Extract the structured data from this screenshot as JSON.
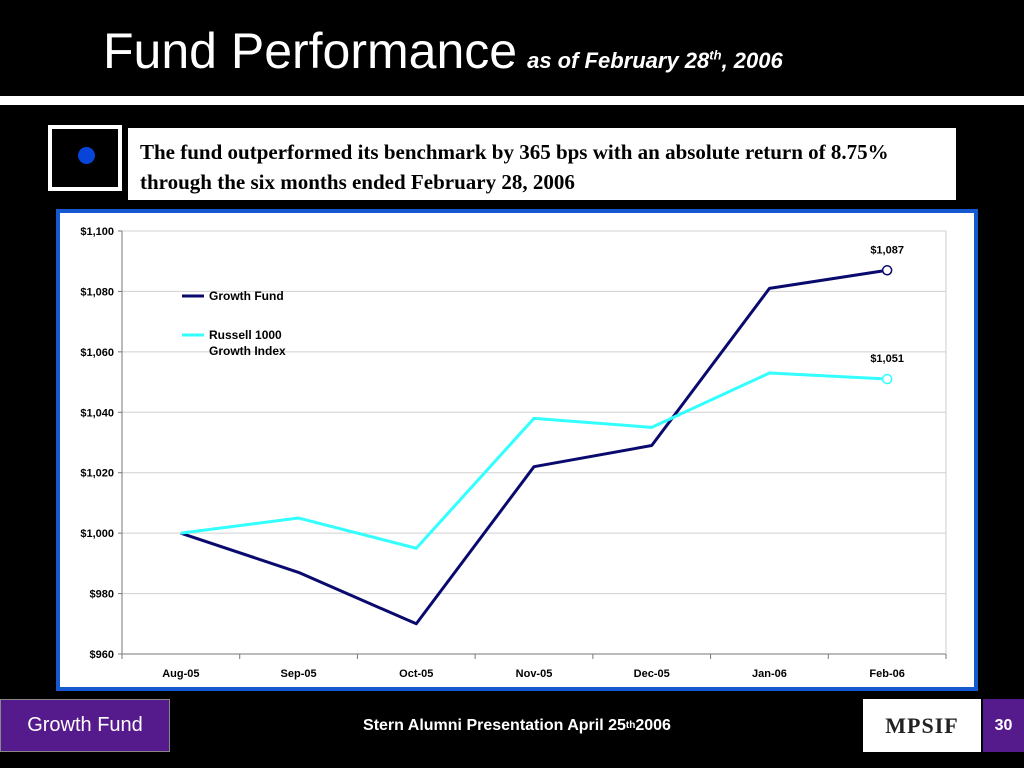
{
  "slide": {
    "title": "Fund Performance",
    "subtitle_pre": "as of February 28",
    "subtitle_sup": "th",
    "subtitle_post": ", 2006",
    "callout": "The fund outperformed its benchmark by 365 bps with an absolute return of 8.75% through the six months ended February 28, 2006"
  },
  "footer": {
    "left_label": "Growth Fund",
    "center_pre": "Stern Alumni Presentation April 25",
    "center_sup": "th",
    "center_post": " 2006",
    "logo_text": "MPSIF",
    "page_number": "30"
  },
  "chart_data": {
    "type": "line",
    "categories": [
      "Aug-05",
      "Sep-05",
      "Oct-05",
      "Nov-05",
      "Dec-05",
      "Jan-06",
      "Feb-06"
    ],
    "ylim": [
      960,
      1100
    ],
    "yticks": [
      "$960",
      "$980",
      "$1,000",
      "$1,020",
      "$1,040",
      "$1,060",
      "$1,080",
      "$1,100"
    ],
    "ytick_values": [
      960,
      980,
      1000,
      1020,
      1040,
      1060,
      1080,
      1100
    ],
    "grid": true,
    "legend_position": "top-left",
    "series": [
      {
        "name": "Growth Fund",
        "color": "#0a0a6e",
        "values": [
          1000,
          987,
          970,
          1022,
          1029,
          1081,
          1087
        ],
        "end_label": "$1,087"
      },
      {
        "name": "Russell 1000 Growth Index",
        "legend_lines": [
          "Russell 1000",
          "Growth Index"
        ],
        "color": "#33ffff",
        "values": [
          1000,
          1005,
          995,
          1038,
          1035,
          1053,
          1051
        ],
        "end_label": "$1,051"
      }
    ]
  }
}
